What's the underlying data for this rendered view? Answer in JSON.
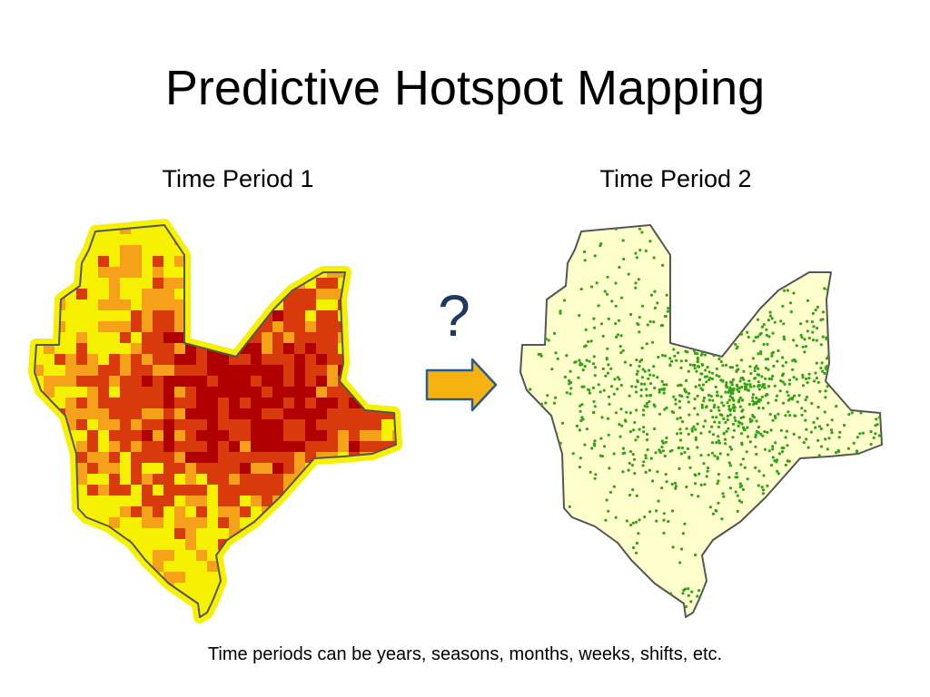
{
  "slide": {
    "title": "Predictive Hotspot Mapping",
    "period_1_label": "Time Period 1",
    "period_2_label": "Time Period 2",
    "question_mark": "?",
    "caption": "Time periods can be years, seasons, months, weeks, shifts, etc."
  },
  "colors": {
    "background": "#ffffff",
    "map_outline": "#555555",
    "hotspot_low": "#f6f100",
    "hotspot_medium": "#f5a21a",
    "hotspot_high": "#d83a0c",
    "hotspot_very_high": "#b00000",
    "period2_fill": "#ffffcc",
    "incident_point": "#33a31a",
    "arrow_fill": "#f5b210",
    "arrow_stroke": "#2e5a8a",
    "question_color": "#1f3864"
  },
  "icons": {
    "arrow": "right-arrow-icon"
  }
}
